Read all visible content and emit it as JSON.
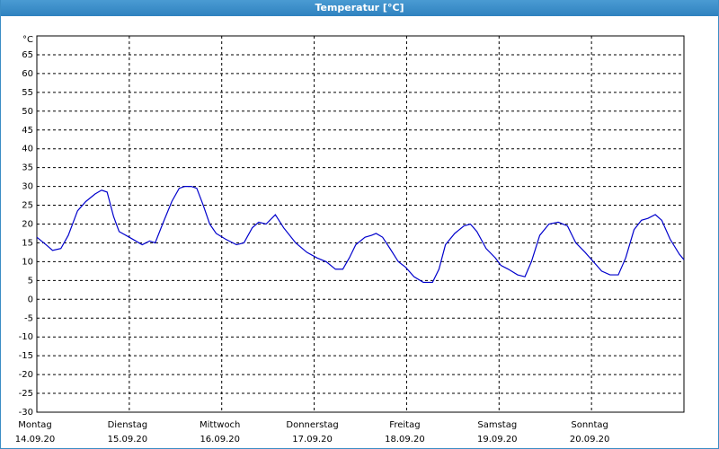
{
  "chart_data": {
    "type": "line",
    "title": "Temperatur [°C]",
    "y_label": "°C",
    "xlim": [
      0,
      7
    ],
    "xticks": [
      {
        "value": 0,
        "label": "Montag",
        "date": "14.09.20"
      },
      {
        "value": 1,
        "label": "Dienstag",
        "date": "15.09.20"
      },
      {
        "value": 2,
        "label": "Mittwoch",
        "date": "16.09.20"
      },
      {
        "value": 3,
        "label": "Donnerstag",
        "date": "17.09.20"
      },
      {
        "value": 4,
        "label": "Freitag",
        "date": "18.09.20"
      },
      {
        "value": 5,
        "label": "Samstag",
        "date": "19.09.20"
      },
      {
        "value": 6,
        "label": "Sonntag",
        "date": "20.09.20"
      }
    ],
    "ylim": [
      -30,
      70
    ],
    "yticks": [
      -30,
      -25,
      -20,
      -15,
      -10,
      -5,
      0,
      5,
      10,
      15,
      20,
      25,
      30,
      35,
      40,
      45,
      50,
      55,
      60,
      65
    ],
    "grid": true,
    "series": [
      {
        "color": "#0000cc",
        "x": [
          0,
          0.1,
          0.17,
          0.26,
          0.34,
          0.44,
          0.53,
          0.63,
          0.7,
          0.76,
          0.83,
          0.89,
          1.0,
          1.14,
          1.22,
          1.28,
          1.36,
          1.46,
          1.54,
          1.6,
          1.67,
          1.73,
          1.8,
          1.87,
          1.94,
          2.04,
          2.16,
          2.24,
          2.33,
          2.4,
          2.48,
          2.58,
          2.67,
          2.8,
          2.92,
          3.03,
          3.13,
          3.23,
          3.31,
          3.38,
          3.45,
          3.55,
          3.62,
          3.67,
          3.74,
          3.82,
          3.91,
          3.99,
          4.08,
          4.18,
          4.28,
          4.35,
          4.42,
          4.52,
          4.62,
          4.69,
          4.76,
          4.86,
          4.96,
          5.02,
          5.1,
          5.2,
          5.28,
          5.35,
          5.44,
          5.54,
          5.64,
          5.74,
          5.83,
          5.93,
          6.02,
          6.11,
          6.2,
          6.29,
          6.37,
          6.46,
          6.54,
          6.61,
          6.69,
          6.76,
          6.85,
          6.95,
          7
        ],
        "values": [
          16.5,
          14.5,
          13,
          13.5,
          17,
          23.5,
          26,
          28,
          29,
          28.5,
          22,
          18,
          16.5,
          14.5,
          15.5,
          15,
          20,
          26,
          29.5,
          30,
          30,
          29.5,
          25,
          20,
          17.5,
          16,
          14.5,
          15,
          19,
          20.5,
          20,
          22.5,
          19,
          15,
          12.5,
          11,
          10,
          8,
          8,
          11,
          14.5,
          16.5,
          17,
          17.5,
          16.5,
          13.5,
          10,
          8.5,
          6,
          4.5,
          4.5,
          8,
          14.5,
          17.5,
          19.5,
          20,
          18,
          13.5,
          11,
          9,
          8,
          6.5,
          6,
          10,
          17,
          20,
          20.5,
          19.5,
          15,
          12.5,
          10,
          7.5,
          6.5,
          6.5,
          11,
          18.5,
          21,
          21.5,
          22.5,
          21,
          16,
          12,
          10.5
        ]
      }
    ]
  }
}
